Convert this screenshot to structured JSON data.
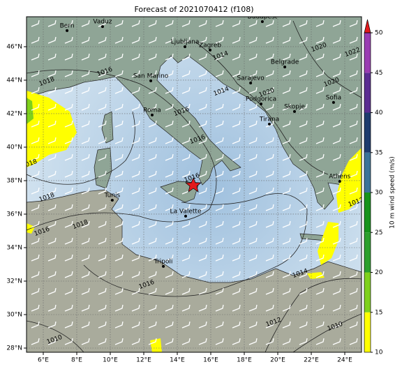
{
  "map": {
    "title": "Forecast of 2021070412 (f108)",
    "xlim": [
      5,
      25
    ],
    "ylim": [
      27.75,
      47.79
    ],
    "xticks": [
      {
        "value": 6,
        "label": "6°E"
      },
      {
        "value": 8,
        "label": "8°E"
      },
      {
        "value": 10,
        "label": "10°E"
      },
      {
        "value": 12,
        "label": "12°E"
      },
      {
        "value": 14,
        "label": "14°E"
      },
      {
        "value": 16,
        "label": "16°E"
      },
      {
        "value": 18,
        "label": "18°E"
      },
      {
        "value": 20,
        "label": "20°E"
      },
      {
        "value": 22,
        "label": "22°E"
      },
      {
        "value": 24,
        "label": "24°E"
      }
    ],
    "yticks": [
      {
        "value": 28,
        "label": "28°N"
      },
      {
        "value": 30,
        "label": "30°N"
      },
      {
        "value": 32,
        "label": "32°N"
      },
      {
        "value": 34,
        "label": "34°N"
      },
      {
        "value": 36,
        "label": "36°N"
      },
      {
        "value": 38,
        "label": "38°N"
      },
      {
        "value": 40,
        "label": "40°N"
      },
      {
        "value": 42,
        "label": "42°N"
      },
      {
        "value": 44,
        "label": "44°N"
      },
      {
        "value": 46,
        "label": "46°N"
      }
    ],
    "grid": true,
    "cities": [
      {
        "name": "Bern",
        "lon": 7.42,
        "lat": 46.96
      },
      {
        "name": "Vaduz",
        "lon": 9.54,
        "lat": 47.2
      },
      {
        "name": "Budapest",
        "lon": 19.08,
        "lat": 47.5
      },
      {
        "name": "Ljubljana",
        "lon": 14.46,
        "lat": 46.0
      },
      {
        "name": "Zagreb",
        "lon": 15.96,
        "lat": 45.8
      },
      {
        "name": "San Marino",
        "lon": 12.42,
        "lat": 43.96
      },
      {
        "name": "Sarajevo",
        "lon": 18.38,
        "lat": 43.83
      },
      {
        "name": "Belgrade",
        "lon": 20.42,
        "lat": 44.79
      },
      {
        "name": "Podgorica",
        "lon": 19.0,
        "lat": 42.58
      },
      {
        "name": "Sofia",
        "lon": 23.33,
        "lat": 42.67
      },
      {
        "name": "Skopje",
        "lon": 21.0,
        "lat": 42.13
      },
      {
        "name": "Tirana",
        "lon": 19.5,
        "lat": 41.38
      },
      {
        "name": "Roma",
        "lon": 12.5,
        "lat": 41.92
      },
      {
        "name": "Athens",
        "lon": 23.7,
        "lat": 37.96
      },
      {
        "name": "Tunis",
        "lon": 10.12,
        "lat": 36.83
      },
      {
        "name": "La Valette",
        "lon": 14.5,
        "lat": 35.88
      },
      {
        "name": "Tripoli",
        "lon": 13.17,
        "lat": 32.88
      }
    ],
    "isobar_labels": [
      1016,
      1018,
      1014,
      1020,
      1016,
      1016,
      1018,
      1016,
      1018,
      1018,
      1016,
      1016,
      1014,
      1012,
      1010,
      1010,
      1020,
      1022,
      1020,
      1014,
      1012
    ],
    "colorbar": {
      "label": "10 m wind speed (m/s)",
      "lim": [
        10,
        50
      ],
      "ticks": [
        10,
        15,
        20,
        25,
        30,
        35,
        40,
        45,
        50
      ],
      "bounds": [
        10,
        15,
        20,
        25,
        30,
        35,
        40,
        45,
        50
      ],
      "colors": [
        "#ffff00",
        "#7fd11b",
        "#2ca02c",
        "#16931a",
        "#3b7398",
        "#1e3b6e",
        "#5b2c92",
        "#9a3cb2"
      ],
      "extend_color": "#e31a1c"
    }
  }
}
